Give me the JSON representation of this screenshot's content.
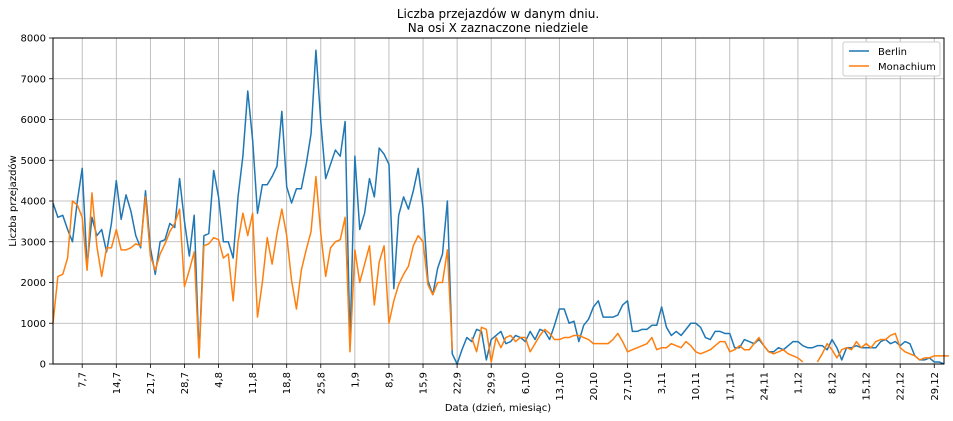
{
  "chart_data": {
    "type": "line",
    "title": "Liczba przejazdów w danym dniu.",
    "subtitle": "Na osi X zaznaczone niedziele",
    "xlabel": "Data (dzień, miesiąc)",
    "ylabel": "Liczba przejazdów",
    "ylim": [
      0,
      8000
    ],
    "yticks": [
      0,
      1000,
      2000,
      3000,
      4000,
      5000,
      6000,
      7000,
      8000
    ],
    "x_start": "2019-07-01",
    "x_count": 184,
    "xticks": [
      {
        "label": "7,7"
      },
      {
        "label": "14,7"
      },
      {
        "label": "21,7"
      },
      {
        "label": "28,7"
      },
      {
        "label": "4,8"
      },
      {
        "label": "11,8"
      },
      {
        "label": "18,8"
      },
      {
        "label": "25,8"
      },
      {
        "label": "1,9"
      },
      {
        "label": "8,9"
      },
      {
        "label": "15,9"
      },
      {
        "label": "22,9"
      },
      {
        "label": "29,9"
      },
      {
        "label": "6,10"
      },
      {
        "label": "13,10"
      },
      {
        "label": "20,10"
      },
      {
        "label": "27,10"
      },
      {
        "label": "3,11"
      },
      {
        "label": "10,11"
      },
      {
        "label": "17,11"
      },
      {
        "label": "24,11"
      },
      {
        "label": "1,12"
      },
      {
        "label": "8,12"
      },
      {
        "label": "15,12"
      },
      {
        "label": "22,12"
      },
      {
        "label": "29,12"
      }
    ],
    "grid": true,
    "legend_position": "top-right",
    "series": [
      {
        "name": "Berlin",
        "color": "#1f77b4",
        "values": [
          3950,
          3600,
          3650,
          3300,
          3000,
          4000,
          4800,
          2400,
          3600,
          3150,
          3300,
          2750,
          3450,
          4500,
          3550,
          4150,
          3750,
          3150,
          2850,
          4250,
          2850,
          2200,
          3000,
          3050,
          3450,
          3350,
          4550,
          3500,
          2650,
          3650,
          200,
          3150,
          3200,
          4750,
          4100,
          3000,
          3000,
          2600,
          4100,
          5100,
          6700,
          5500,
          3700,
          4400,
          4400,
          4600,
          4850,
          6200,
          4350,
          3950,
          4300,
          4300,
          4900,
          5650,
          7700,
          5950,
          4550,
          4900,
          5250,
          5100,
          5950,
          500,
          5100,
          3300,
          3700,
          4550,
          4100,
          5300,
          5150,
          4900,
          1850,
          3650,
          4100,
          3800,
          4250,
          4800,
          3850,
          2050,
          1700,
          2350,
          2700,
          4000,
          250,
          0,
          350,
          650,
          550,
          850,
          800,
          100,
          600,
          700,
          800,
          500,
          550,
          700,
          650,
          550,
          800,
          600,
          850,
          800,
          600,
          950,
          1350,
          1350,
          1000,
          1050,
          550,
          950,
          1100,
          1400,
          1550,
          1150,
          1150,
          1150,
          1200,
          1450,
          1550,
          800,
          800,
          850,
          850,
          950,
          950,
          1400,
          900,
          700,
          800,
          700,
          850,
          1000,
          1000,
          900,
          650,
          600,
          800,
          800,
          750,
          750,
          400,
          400,
          600,
          550,
          500,
          600,
          450,
          300,
          300,
          400,
          350,
          450,
          550,
          550,
          450,
          400,
          400,
          450,
          450,
          350,
          600,
          400,
          100,
          400,
          400,
          450,
          400,
          400,
          400,
          400,
          550,
          600,
          500,
          550,
          450,
          550,
          500,
          200,
          100,
          100,
          150,
          50,
          50,
          0
        ]
      },
      {
        "name": "Monachium",
        "color": "#ff7f0e",
        "values": [
          1000,
          2150,
          2200,
          2600,
          4000,
          3900,
          3600,
          2300,
          4200,
          2900,
          2150,
          2850,
          2850,
          3300,
          2800,
          2800,
          2850,
          2950,
          2900,
          4100,
          2650,
          2300,
          2700,
          2950,
          3250,
          3450,
          3800,
          1900,
          2300,
          2750,
          150,
          2900,
          2950,
          3100,
          3050,
          2600,
          2700,
          1550,
          3000,
          3700,
          3150,
          3700,
          1150,
          2000,
          3100,
          2450,
          3200,
          3800,
          3150,
          2050,
          1350,
          2300,
          2800,
          3250,
          4600,
          3200,
          2150,
          2850,
          3000,
          3050,
          3600,
          300,
          2800,
          2000,
          2450,
          2900,
          1450,
          2500,
          2900,
          1000,
          1550,
          1950,
          2200,
          2400,
          2900,
          3150,
          3000,
          1950,
          1700,
          2000,
          2000,
          2800,
          350,
          null,
          null,
          null,
          650,
          300,
          900,
          850,
          50,
          650,
          400,
          650,
          700,
          550,
          650,
          650,
          300,
          500,
          700,
          850,
          750,
          600,
          600,
          650,
          650,
          700,
          700,
          650,
          600,
          500,
          500,
          500,
          500,
          600,
          750,
          550,
          300,
          350,
          400,
          450,
          500,
          650,
          350,
          400,
          400,
          500,
          450,
          400,
          550,
          450,
          300,
          250,
          300,
          350,
          450,
          550,
          550,
          300,
          350,
          450,
          350,
          350,
          500,
          650,
          450,
          300,
          250,
          300,
          350,
          250,
          200,
          150,
          50,
          null,
          null,
          50,
          250,
          500,
          350,
          150,
          350,
          400,
          350,
          550,
          400,
          500,
          400,
          550,
          600,
          600,
          700,
          750,
          400,
          300,
          250,
          200,
          100,
          150,
          150,
          200,
          200,
          200,
          200
        ]
      }
    ]
  }
}
